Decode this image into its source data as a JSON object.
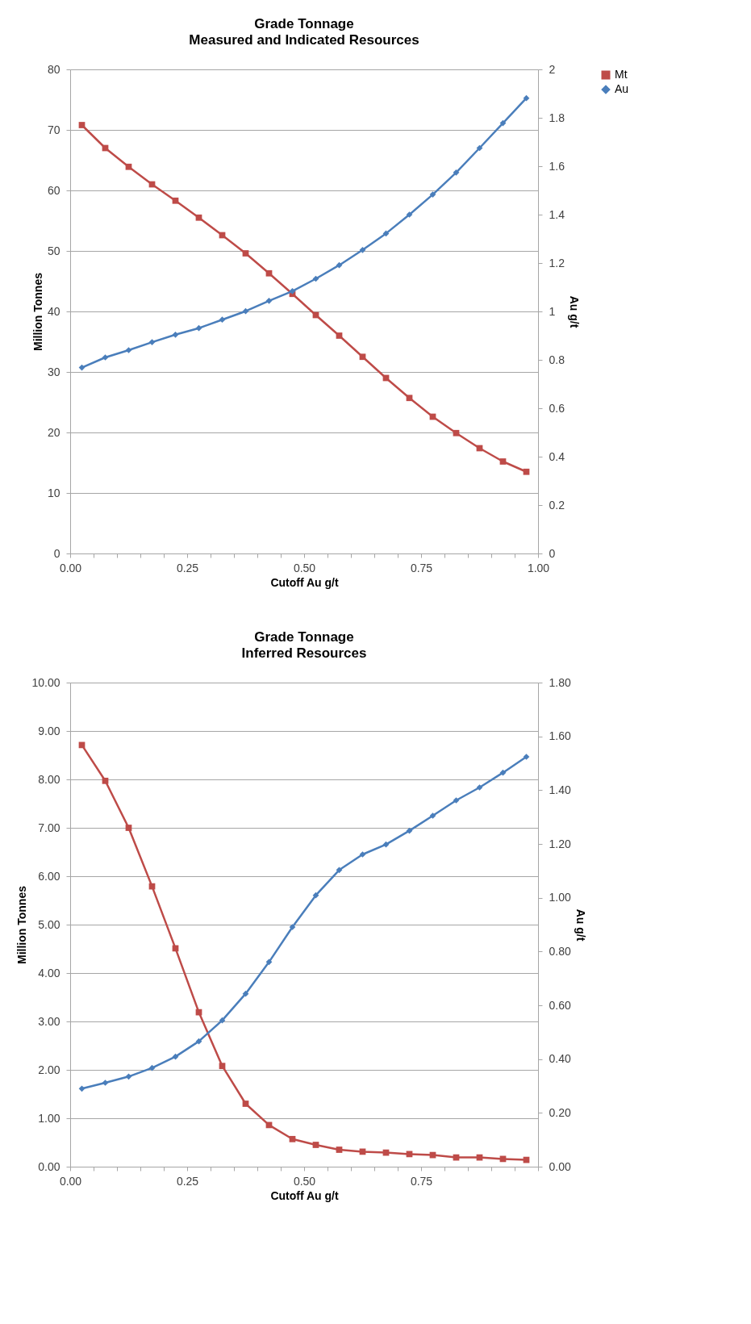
{
  "chart_data": [
    {
      "type": "line",
      "title": "Grade Tonnage",
      "subtitle": "Measured and Indicated Resources",
      "xlabel": "Cutoff Au g/t",
      "ylabel": "Million Tonnes",
      "y2label": "Au g/t",
      "x": [
        0.025,
        0.075,
        0.125,
        0.175,
        0.225,
        0.275,
        0.325,
        0.375,
        0.425,
        0.475,
        0.525,
        0.575,
        0.625,
        0.675,
        0.725,
        0.775,
        0.825,
        0.875,
        0.925,
        0.975
      ],
      "series": [
        {
          "name": "Mt",
          "color": "#be4b48",
          "marker": "square",
          "values": [
            70.8,
            67.0,
            63.9,
            61.0,
            58.3,
            55.5,
            52.6,
            49.6,
            46.3,
            42.9,
            39.4,
            36.0,
            32.5,
            29.0,
            25.7,
            22.6,
            19.9,
            17.4,
            15.2,
            13.5
          ]
        },
        {
          "name": "Au",
          "color": "#4a7ebb",
          "marker": "diamond",
          "axis": "y2",
          "values": [
            0.768,
            0.81,
            0.84,
            0.873,
            0.904,
            0.931,
            0.966,
            1.001,
            1.044,
            1.084,
            1.135,
            1.191,
            1.254,
            1.322,
            1.4,
            1.483,
            1.574,
            1.675,
            1.778,
            1.881
          ]
        }
      ],
      "xlim": [
        0,
        1
      ],
      "xticks": [
        {
          "value": 0,
          "label": "0.00"
        },
        {
          "value": 0.05,
          "label": null
        },
        {
          "value": 0.1,
          "label": null
        },
        {
          "value": 0.15,
          "label": null
        },
        {
          "value": 0.2,
          "label": null
        },
        {
          "value": 0.25,
          "label": "0.25"
        },
        {
          "value": 0.3,
          "label": null
        },
        {
          "value": 0.35,
          "label": null
        },
        {
          "value": 0.4,
          "label": null
        },
        {
          "value": 0.45,
          "label": null
        },
        {
          "value": 0.5,
          "label": "0.50"
        },
        {
          "value": 0.55,
          "label": null
        },
        {
          "value": 0.6,
          "label": null
        },
        {
          "value": 0.65,
          "label": null
        },
        {
          "value": 0.7,
          "label": null
        },
        {
          "value": 0.75,
          "label": "0.75"
        },
        {
          "value": 0.8,
          "label": null
        },
        {
          "value": 0.85,
          "label": null
        },
        {
          "value": 0.9,
          "label": null
        },
        {
          "value": 0.95,
          "label": null
        },
        {
          "value": 1,
          "label": "1.00"
        }
      ],
      "ylim": [
        0,
        80
      ],
      "yticks": [
        0,
        10,
        20,
        30,
        40,
        50,
        60,
        70,
        80
      ],
      "y2lim": [
        0,
        2
      ],
      "y2ticks": [
        0,
        0.2,
        0.4,
        0.6,
        0.8,
        1,
        1.2,
        1.4,
        1.6,
        1.8,
        2
      ],
      "grid": "y",
      "legend": "right"
    },
    {
      "type": "line",
      "title": "Grade Tonnage",
      "subtitle": "Inferred Resources",
      "xlabel": "Cutoff Au g/t",
      "ylabel": "Million Tonnes",
      "y2label": "Au g/t",
      "x": [
        0.025,
        0.075,
        0.125,
        0.175,
        0.225,
        0.275,
        0.325,
        0.375,
        0.425,
        0.475,
        0.525,
        0.575,
        0.625,
        0.675,
        0.725,
        0.775,
        0.825,
        0.875,
        0.925,
        0.975
      ],
      "series": [
        {
          "name": "Mt",
          "color": "#be4b48",
          "marker": "square",
          "values": [
            8.71,
            7.97,
            7.0,
            5.79,
            4.51,
            3.19,
            2.08,
            1.3,
            0.86,
            0.57,
            0.45,
            0.35,
            0.31,
            0.29,
            0.26,
            0.24,
            0.19,
            0.19,
            0.16,
            0.14
          ]
        },
        {
          "name": "Au",
          "color": "#4a7ebb",
          "marker": "diamond",
          "axis": "y2",
          "values": [
            0.29,
            0.312,
            0.335,
            0.367,
            0.409,
            0.466,
            0.544,
            0.643,
            0.761,
            0.891,
            1.009,
            1.103,
            1.161,
            1.198,
            1.249,
            1.305,
            1.362,
            1.41,
            1.465,
            1.524
          ]
        }
      ],
      "xlim": [
        0,
        1
      ],
      "xticks": [
        {
          "value": 0,
          "label": "0.00"
        },
        {
          "value": 0.05,
          "label": null
        },
        {
          "value": 0.1,
          "label": null
        },
        {
          "value": 0.15,
          "label": null
        },
        {
          "value": 0.2,
          "label": null
        },
        {
          "value": 0.25,
          "label": "0.25"
        },
        {
          "value": 0.3,
          "label": null
        },
        {
          "value": 0.35,
          "label": null
        },
        {
          "value": 0.4,
          "label": null
        },
        {
          "value": 0.45,
          "label": null
        },
        {
          "value": 0.5,
          "label": "0.50"
        },
        {
          "value": 0.55,
          "label": null
        },
        {
          "value": 0.6,
          "label": null
        },
        {
          "value": 0.65,
          "label": null
        },
        {
          "value": 0.7,
          "label": null
        },
        {
          "value": 0.75,
          "label": "0.75"
        },
        {
          "value": 0.8,
          "label": null
        },
        {
          "value": 0.85,
          "label": null
        },
        {
          "value": 0.9,
          "label": null
        },
        {
          "value": 0.95,
          "label": null
        },
        {
          "value": 1,
          "label": null
        }
      ],
      "ylim": [
        0,
        10
      ],
      "yticks": [
        {
          "value": 0,
          "label": "0.00"
        },
        {
          "value": 1,
          "label": "1.00"
        },
        {
          "value": 2,
          "label": "2.00"
        },
        {
          "value": 3,
          "label": "3.00"
        },
        {
          "value": 4,
          "label": "4.00"
        },
        {
          "value": 5,
          "label": "5.00"
        },
        {
          "value": 6,
          "label": "6.00"
        },
        {
          "value": 7,
          "label": "7.00"
        },
        {
          "value": 8,
          "label": "8.00"
        },
        {
          "value": 9,
          "label": "9.00"
        },
        {
          "value": 10,
          "label": "10.00"
        }
      ],
      "y2lim": [
        0,
        1.8
      ],
      "y2ticks": [
        {
          "value": 0,
          "label": "0.00"
        },
        {
          "value": 0.2,
          "label": "0.20"
        },
        {
          "value": 0.4,
          "label": "0.40"
        },
        {
          "value": 0.6,
          "label": "0.60"
        },
        {
          "value": 0.8,
          "label": "0.80"
        },
        {
          "value": 1,
          "label": "1.00"
        },
        {
          "value": 1.2,
          "label": "1.20"
        },
        {
          "value": 1.4,
          "label": "1.40"
        },
        {
          "value": 1.6,
          "label": "1.60"
        },
        {
          "value": 1.8,
          "label": "1.80"
        }
      ],
      "grid": "y",
      "legend": "right"
    }
  ]
}
